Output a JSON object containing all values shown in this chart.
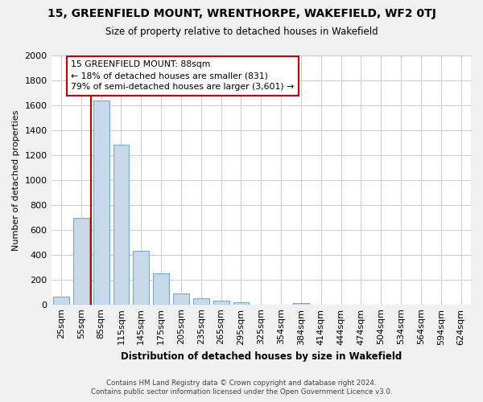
{
  "title": "15, GREENFIELD MOUNT, WRENTHORPE, WAKEFIELD, WF2 0TJ",
  "subtitle": "Size of property relative to detached houses in Wakefield",
  "xlabel": "Distribution of detached houses by size in Wakefield",
  "ylabel": "Number of detached properties",
  "bar_color": "#c8d9ea",
  "bar_edge_color": "#7aaac8",
  "marker_line_color": "#cc0000",
  "categories": [
    "25sqm",
    "55sqm",
    "85sqm",
    "115sqm",
    "145sqm",
    "175sqm",
    "205sqm",
    "235sqm",
    "265sqm",
    "295sqm",
    "325sqm",
    "354sqm",
    "384sqm",
    "414sqm",
    "444sqm",
    "474sqm",
    "504sqm",
    "534sqm",
    "564sqm",
    "594sqm",
    "624sqm"
  ],
  "values": [
    65,
    695,
    1640,
    1285,
    430,
    250,
    88,
    50,
    28,
    20,
    0,
    0,
    12,
    0,
    0,
    0,
    0,
    0,
    0,
    0,
    0
  ],
  "ylim": [
    0,
    2000
  ],
  "yticks": [
    0,
    200,
    400,
    600,
    800,
    1000,
    1200,
    1400,
    1600,
    1800,
    2000
  ],
  "marker_bar_index": 2,
  "annotation_title": "15 GREENFIELD MOUNT: 88sqm",
  "annotation_line1": "← 18% of detached houses are smaller (831)",
  "annotation_line2": "79% of semi-detached houses are larger (3,601) →",
  "footer_line1": "Contains HM Land Registry data © Crown copyright and database right 2024.",
  "footer_line2": "Contains public sector information licensed under the Open Government Licence v3.0.",
  "bg_color": "#f0f0f0",
  "plot_bg_color": "#ffffff",
  "grid_color": "#cccccc"
}
